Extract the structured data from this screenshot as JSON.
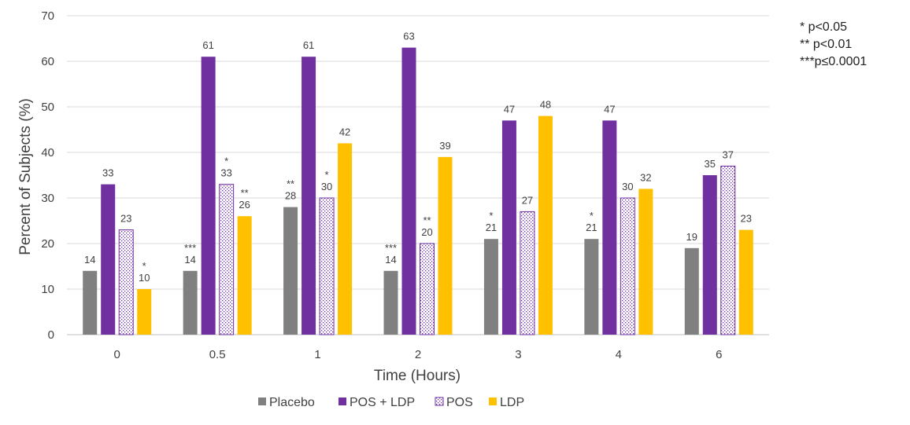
{
  "chart_data": {
    "type": "bar",
    "title": "",
    "xlabel": "Time (Hours)",
    "ylabel": "Percent of Subjects (%)",
    "ylim": [
      0,
      70
    ],
    "yticks": [
      "0",
      "10",
      "20",
      "30",
      "40",
      "50",
      "60",
      "70"
    ],
    "categories": [
      "0",
      "0.5",
      "1",
      "2",
      "3",
      "4",
      "6"
    ],
    "grid": true,
    "legend_position": "bottom",
    "series": [
      {
        "name": "Placebo",
        "color": "#808080",
        "pattern": "solid",
        "values": [
          14,
          14,
          28,
          14,
          21,
          21,
          19
        ],
        "labels": [
          "14",
          "14",
          "28",
          "14",
          "21",
          "21",
          "19"
        ],
        "significance": [
          "",
          "***",
          "**",
          "***",
          "*",
          "*",
          ""
        ]
      },
      {
        "name": "POS + LDP",
        "color": "#7030A0",
        "pattern": "solid",
        "values": [
          33,
          61,
          61,
          63,
          47,
          47,
          35
        ],
        "labels": [
          "33",
          "61",
          "61",
          "63",
          "47",
          "47",
          "35"
        ],
        "significance": [
          "",
          "",
          "",
          "",
          "",
          "",
          ""
        ]
      },
      {
        "name": "POS",
        "color": "#7030A0",
        "pattern": "dotted",
        "values": [
          23,
          33,
          30,
          20,
          27,
          30,
          37
        ],
        "labels": [
          "23",
          "33",
          "30",
          "20",
          "27",
          "30",
          "37"
        ],
        "significance": [
          "",
          "*",
          "*",
          "**",
          "",
          "",
          ""
        ]
      },
      {
        "name": "LDP",
        "color": "#FFC000",
        "pattern": "solid",
        "values": [
          10,
          26,
          42,
          39,
          48,
          32,
          23
        ],
        "labels": [
          "10",
          "26",
          "42",
          "39",
          "48",
          "32",
          "23"
        ],
        "significance": [
          "*",
          "**",
          "",
          "",
          "",
          "",
          ""
        ]
      }
    ]
  },
  "notes": [
    "* p<0.05",
    "** p<0.01",
    "***p≤0.0001"
  ]
}
